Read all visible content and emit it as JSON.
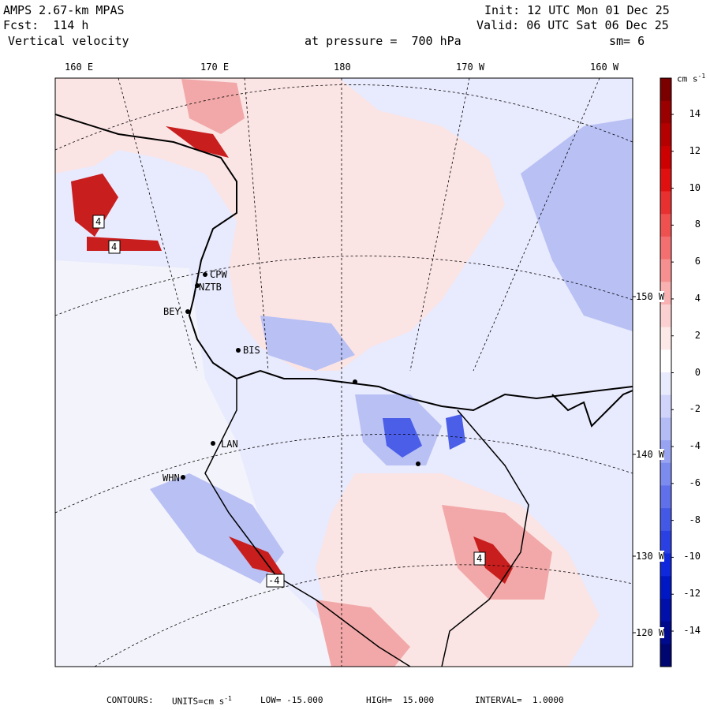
{
  "header": {
    "model": "AMPS 2.67-km MPAS",
    "forecast": "Fcst:  114 h",
    "field": "Vertical velocity",
    "init": "Init: 12 UTC Mon 01 Dec 25",
    "valid": "Valid: 06 UTC Sat 06 Dec 25",
    "pressure": "at pressure =  700 hPa",
    "smoothing": "sm= 6"
  },
  "footer": {
    "contours": "CONTOURS:",
    "units": "UNITS=cm s",
    "low": "LOW= -15.000",
    "high": "HIGH=  15.000",
    "interval": "INTERVAL=  1.0000"
  },
  "colors": {
    "neg_strong": "#00008c",
    "neg_mid": "#3c50e6",
    "neg_light": "#aab4f0",
    "neg_faint": "#dce0fa",
    "pos_faint": "#fae0e0",
    "pos_light": "#f5aaaa",
    "pos_mid": "#e63c3c",
    "pos_strong": "#8c0000",
    "land": "#eef0fb"
  },
  "chart_data": {
    "type": "heatmap",
    "title": "Vertical velocity",
    "units": "cm s-1",
    "pressure_hPa": 700,
    "forecast_hour": 114,
    "smoothing": 6,
    "contour_low": -15.0,
    "contour_high": 15.0,
    "contour_interval": 1.0,
    "longitude_labels_top": [
      "160 E",
      "170 E",
      "180",
      "170 W",
      "160 W"
    ],
    "longitude_labels_right": [
      "150 W",
      "140 W",
      "130 W",
      "120 W"
    ],
    "colorbar": {
      "unit_label": "cm s",
      "tick_labels": [
        "14",
        "12",
        "10",
        "8",
        "6",
        "4",
        "2",
        "0",
        "-2",
        "-4",
        "-6",
        "-8",
        "-10",
        "-12",
        "-14"
      ],
      "swatches": [
        "#7a0000",
        "#9a0000",
        "#b40000",
        "#cc0000",
        "#e01010",
        "#e83030",
        "#ef5050",
        "#f47070",
        "#f69090",
        "#f8b0b0",
        "#fad0d0",
        "#fde8e8",
        "#ffffff",
        "#e8eafd",
        "#d0d4fa",
        "#b4bcf6",
        "#98a4f2",
        "#7c8cee",
        "#6070ea",
        "#4458e6",
        "#2a40e2",
        "#1028dc",
        "#0018c4",
        "#0010a8",
        "#000a8c",
        "#000670"
      ]
    },
    "stations": [
      "CPW",
      "NZTB",
      "BEY",
      "BIS",
      "LAN",
      "WHN"
    ],
    "box_labels": [
      "4",
      "4",
      "4",
      "-4"
    ]
  }
}
